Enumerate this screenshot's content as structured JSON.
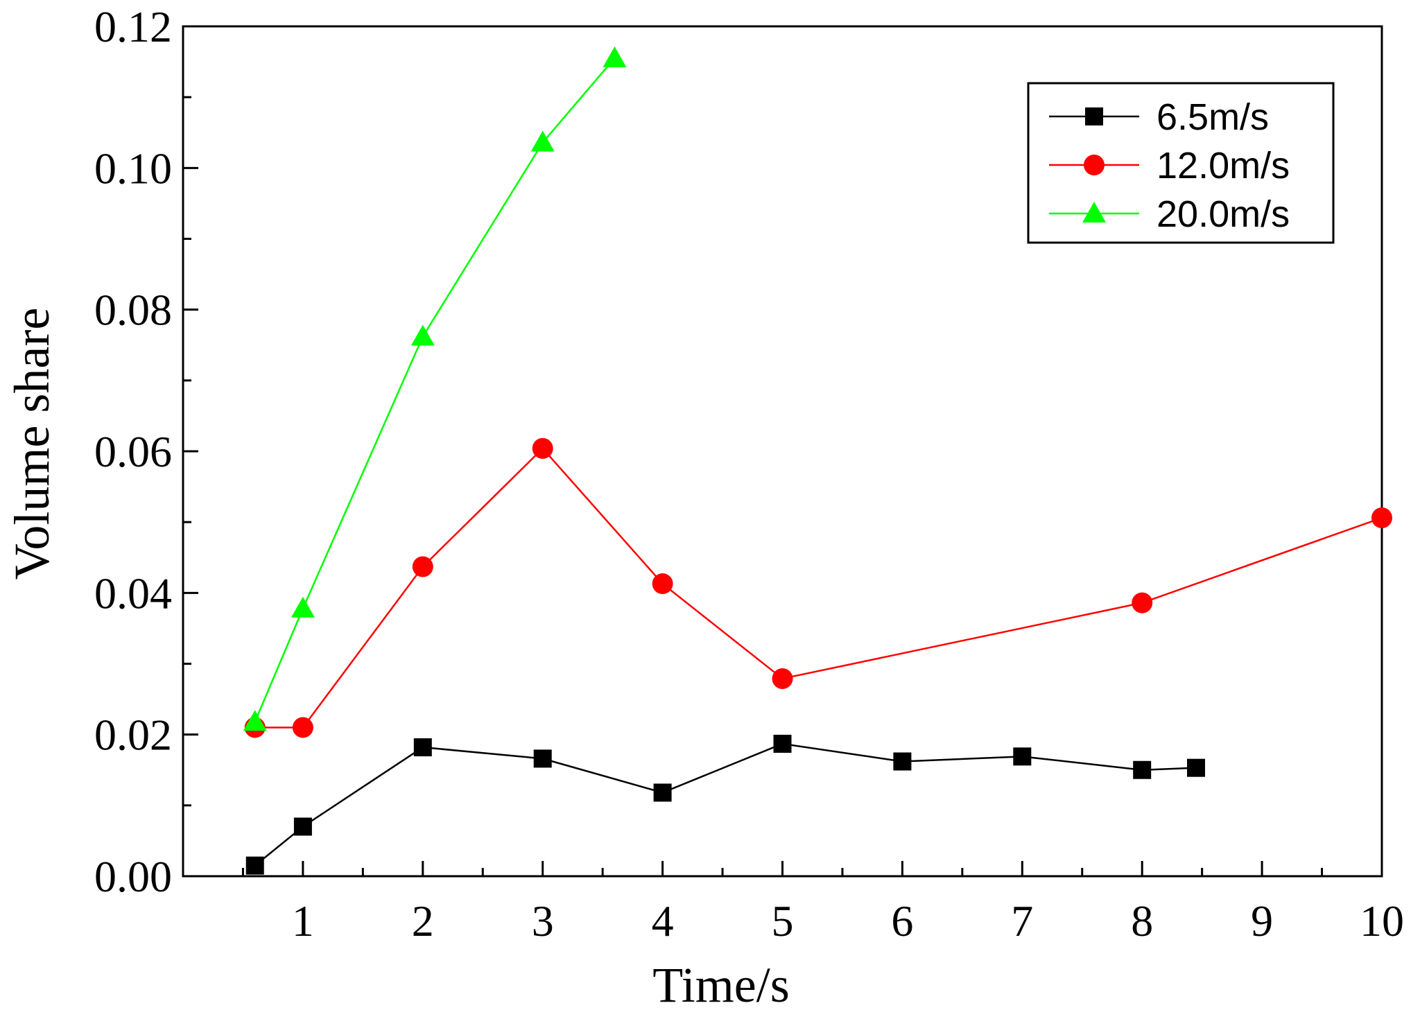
{
  "chart_data": {
    "type": "line",
    "title": "",
    "xlabel": "Time/s",
    "ylabel": "Volume share",
    "xlim": [
      0,
      10
    ],
    "ylim": [
      0,
      0.12
    ],
    "xticks": [
      1,
      2,
      3,
      4,
      5,
      6,
      7,
      8,
      9,
      10
    ],
    "xtick_labels": [
      "1",
      "2",
      "3",
      "4",
      "5",
      "6",
      "7",
      "8",
      "9",
      "10"
    ],
    "yticks": [
      0,
      0.02,
      0.04,
      0.06,
      0.08,
      0.1,
      0.12
    ],
    "ytick_labels": [
      "0.00",
      "0.02",
      "0.04",
      "0.06",
      "0.08",
      "0.10",
      "0.12"
    ],
    "grid": false,
    "legend_position": "top-right",
    "series": [
      {
        "name": "6.5m/s",
        "color": "#000000",
        "marker": "square",
        "x": [
          0.6,
          1.0,
          2.0,
          3.0,
          4.0,
          5.0,
          6.0,
          7.0,
          8.0,
          8.45
        ],
        "y": [
          0.0015,
          0.007,
          0.0182,
          0.0166,
          0.0118,
          0.0187,
          0.0162,
          0.0169,
          0.015,
          0.0153
        ]
      },
      {
        "name": "12.0m/s",
        "color": "#ff0000",
        "marker": "circle",
        "x": [
          0.6,
          1.0,
          2.0,
          3.0,
          4.0,
          5.0,
          8.0,
          10.0
        ],
        "y": [
          0.021,
          0.021,
          0.0437,
          0.0604,
          0.0413,
          0.0279,
          0.0386,
          0.0506
        ]
      },
      {
        "name": "20.0m/s",
        "color": "#00ff00",
        "marker": "triangle",
        "x": [
          0.6,
          1.0,
          2.0,
          3.0,
          3.6
        ],
        "y": [
          0.0218,
          0.0378,
          0.0762,
          0.1036,
          0.1155
        ]
      }
    ]
  }
}
